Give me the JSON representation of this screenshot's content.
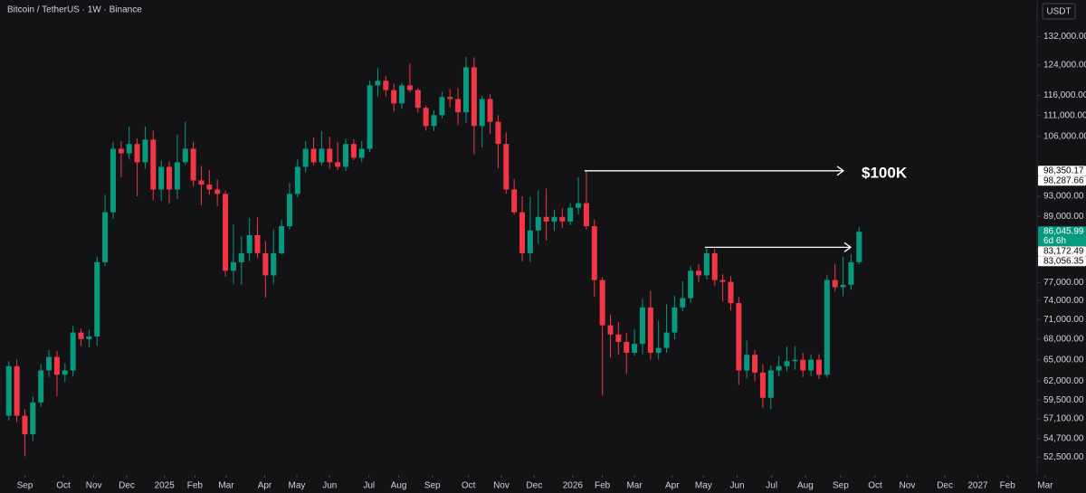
{
  "chart_data": {
    "type": "candlestick",
    "title": "Bitcoin / TetherUS · 1W · Binance",
    "currency": "USDT",
    "annotation": "$100K",
    "log_scale": true,
    "grid": false,
    "up_color": "#089981",
    "down_color": "#f23645",
    "open": [
      57500,
      64100,
      57500,
      55200,
      59200,
      63500,
      65400,
      62900,
      63500,
      69000,
      68000,
      68400,
      80500,
      89800,
      103200,
      102200,
      104300,
      100200,
      105300,
      94400,
      99200,
      94400,
      100200,
      103200,
      96300,
      95400,
      94400,
      93500,
      79000,
      80500,
      82100,
      85400,
      82100,
      78200,
      82100,
      87100,
      93500,
      99200,
      103200,
      100200,
      103200,
      100200,
      99200,
      104300,
      101200,
      103200,
      118600,
      119800,
      117400,
      114000,
      118600,
      117400,
      112900,
      108500,
      111100,
      115600,
      115100,
      111800,
      123400,
      108500,
      115100,
      109500,
      104300,
      94400,
      89800,
      82100,
      86300,
      88900,
      88000,
      88900,
      88000,
      90700,
      91600,
      87100,
      77400,
      70100,
      68700,
      67600,
      66000,
      67300,
      72900,
      66000,
      66700,
      69000,
      72900,
      74400,
      79000,
      78200,
      82100,
      77400,
      77100,
      73600,
      63500,
      65700,
      63200,
      59800,
      63500,
      64100,
      64800,
      65000,
      63500,
      65000,
      62900,
      77400,
      76200,
      76600,
      80500
    ],
    "high": [
      64800,
      65000,
      58300,
      60000,
      64400,
      66400,
      66300,
      64500,
      70000,
      69600,
      69400,
      81500,
      93300,
      104800,
      104900,
      108300,
      105600,
      108400,
      107400,
      100600,
      100400,
      106500,
      109500,
      104800,
      99400,
      98500,
      96500,
      94200,
      87400,
      85200,
      88700,
      88800,
      84300,
      86500,
      88300,
      95700,
      100800,
      105000,
      105800,
      107300,
      106000,
      104800,
      105500,
      105400,
      105000,
      119900,
      123200,
      121000,
      119000,
      119300,
      124500,
      117900,
      113400,
      112300,
      116900,
      117700,
      117900,
      126200,
      126100,
      116000,
      116300,
      111100,
      107000,
      96600,
      93000,
      92900,
      94200,
      94600,
      90300,
      90600,
      91600,
      97000,
      98300,
      88400,
      77900,
      71800,
      70600,
      68900,
      69500,
      74300,
      75600,
      70800,
      73400,
      74800,
      77200,
      79900,
      80200,
      83200,
      82900,
      78400,
      78100,
      74600,
      67800,
      66400,
      64300,
      64200,
      65500,
      66900,
      67000,
      66000,
      65800,
      65800,
      78300,
      80200,
      81500,
      81900,
      86900
    ],
    "low": [
      56900,
      56700,
      52600,
      54400,
      58600,
      62600,
      60000,
      61900,
      62700,
      67000,
      66800,
      67000,
      79800,
      88500,
      97000,
      100800,
      93000,
      98800,
      92200,
      92000,
      91500,
      92500,
      99600,
      95000,
      91200,
      93300,
      91000,
      78000,
      76700,
      76600,
      80700,
      81200,
      74500,
      76700,
      81900,
      86500,
      92800,
      98000,
      99500,
      99500,
      98800,
      98500,
      98300,
      100700,
      100300,
      102500,
      115800,
      115700,
      112000,
      112700,
      116800,
      111700,
      107400,
      107300,
      110300,
      113000,
      108700,
      109200,
      102000,
      103500,
      106700,
      98900,
      93500,
      89300,
      80600,
      80500,
      83800,
      84400,
      86200,
      86800,
      87300,
      89400,
      86500,
      74600,
      60100,
      65300,
      65700,
      63000,
      65600,
      65800,
      65000,
      65000,
      66000,
      68000,
      72300,
      73600,
      77000,
      77500,
      76500,
      73800,
      72400,
      61500,
      62400,
      62000,
      58500,
      58300,
      62700,
      63400,
      63600,
      62600,
      62700,
      62300,
      62500,
      75500,
      74700,
      75800,
      80100
    ],
    "close": [
      64100,
      57500,
      55200,
      59200,
      63500,
      65400,
      62900,
      63500,
      69000,
      68000,
      68400,
      80500,
      89800,
      103200,
      102200,
      104300,
      100200,
      105300,
      94400,
      99200,
      94400,
      100200,
      103200,
      96300,
      95400,
      94400,
      93500,
      79000,
      80500,
      82100,
      85400,
      82100,
      78200,
      82100,
      87100,
      93500,
      99200,
      103200,
      100200,
      103200,
      100200,
      99200,
      104300,
      101200,
      103200,
      118600,
      119800,
      117400,
      114000,
      118600,
      117400,
      112900,
      108500,
      111100,
      115600,
      115100,
      111800,
      123400,
      108500,
      115100,
      109500,
      104300,
      94400,
      89800,
      82100,
      86300,
      88900,
      88000,
      88900,
      88000,
      90700,
      91600,
      87100,
      77400,
      70100,
      68700,
      67600,
      66000,
      67300,
      72900,
      66000,
      66700,
      69000,
      72900,
      74400,
      79000,
      78200,
      82100,
      77400,
      77100,
      73600,
      63500,
      65700,
      63200,
      59800,
      63500,
      64100,
      64800,
      65000,
      63500,
      65000,
      62900,
      77400,
      76200,
      76600,
      80500,
      86045.99
    ],
    "ylim": [
      50500,
      143000
    ],
    "yticks": [
      {
        "value": 132000,
        "label": "132,000.00"
      },
      {
        "value": 124000,
        "label": "124,000.00"
      },
      {
        "value": 116000,
        "label": "116,000.00"
      },
      {
        "value": 111000,
        "label": "111,000.00"
      },
      {
        "value": 106000,
        "label": "106,000.00"
      },
      {
        "value": 93000,
        "label": "93,000.00"
      },
      {
        "value": 89000,
        "label": "89,000.00"
      },
      {
        "value": 77000,
        "label": "77,000.00"
      },
      {
        "value": 74000,
        "label": "74,000.00"
      },
      {
        "value": 71000,
        "label": "71,000.00"
      },
      {
        "value": 68000,
        "label": "68,000.00"
      },
      {
        "value": 65000,
        "label": "65,000.00"
      },
      {
        "value": 62000,
        "label": "62,000.00"
      },
      {
        "value": 59500,
        "label": "59,500.00"
      },
      {
        "value": 57100,
        "label": "57,100.00"
      },
      {
        "value": 54700,
        "label": "54,700.00"
      },
      {
        "value": 52500,
        "label": "52,500.00"
      }
    ],
    "xlim": [
      -1.1,
      130
    ],
    "xticks": [
      {
        "value": 2.0,
        "label": "Sep"
      },
      {
        "value": 6.8,
        "label": "Oct"
      },
      {
        "value": 10.6,
        "label": "Nov"
      },
      {
        "value": 14.7,
        "label": "Dec"
      },
      {
        "value": 19.4,
        "label": "2025"
      },
      {
        "value": 23.2,
        "label": "Feb"
      },
      {
        "value": 27.1,
        "label": "Mar"
      },
      {
        "value": 31.9,
        "label": "Apr"
      },
      {
        "value": 35.9,
        "label": "May"
      },
      {
        "value": 40.0,
        "label": "Jun"
      },
      {
        "value": 44.9,
        "label": "Jul"
      },
      {
        "value": 48.6,
        "label": "Aug"
      },
      {
        "value": 52.8,
        "label": "Sep"
      },
      {
        "value": 57.3,
        "label": "Oct"
      },
      {
        "value": 61.4,
        "label": "Nov"
      },
      {
        "value": 65.5,
        "label": "Dec"
      },
      {
        "value": 70.3,
        "label": "2026"
      },
      {
        "value": 74.0,
        "label": "Feb"
      },
      {
        "value": 78.0,
        "label": "Mar"
      },
      {
        "value": 82.7,
        "label": "Apr"
      },
      {
        "value": 86.6,
        "label": "May"
      },
      {
        "value": 90.8,
        "label": "Jun"
      },
      {
        "value": 95.1,
        "label": "Jul"
      },
      {
        "value": 99.3,
        "label": "Aug"
      },
      {
        "value": 103.7,
        "label": "Sep"
      },
      {
        "value": 108.0,
        "label": "Oct"
      },
      {
        "value": 112.0,
        "label": "Nov"
      },
      {
        "value": 116.7,
        "label": "Dec"
      },
      {
        "value": 120.8,
        "label": "2027"
      },
      {
        "value": 124.5,
        "label": "Feb"
      },
      {
        "value": 129.2,
        "label": "Mar"
      }
    ],
    "price_lines": [
      {
        "value": 98350.17,
        "label": "98,350.17"
      },
      {
        "value": 98287.66,
        "label": "98,287.66"
      },
      {
        "value": 83172.49,
        "label": "83,172.49"
      },
      {
        "value": 83056.35,
        "label": "83,056.35"
      }
    ],
    "last_price": {
      "value": 86045.99,
      "label": "86,045.99",
      "countdown": "6d 6h"
    }
  }
}
